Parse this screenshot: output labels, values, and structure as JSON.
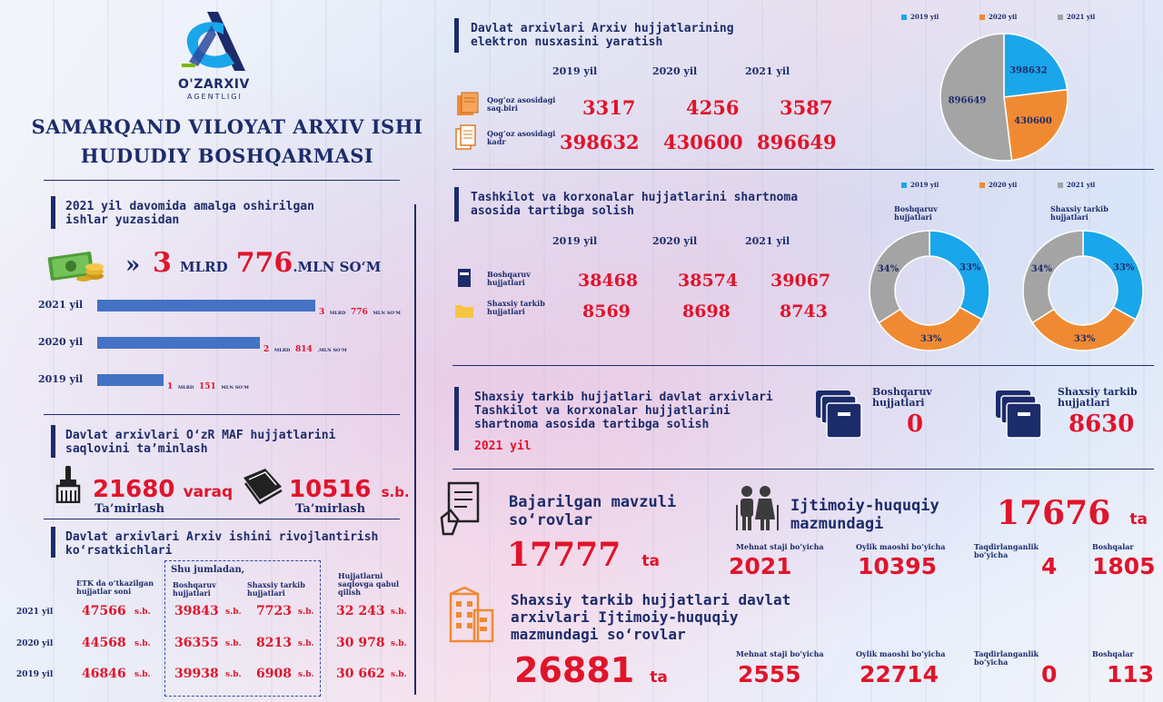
{
  "colors": {
    "navy": "#1c2c6b",
    "red": "#e0142b",
    "blue": "#1aa6ea",
    "orange": "#f08a32",
    "gray": "#a4a4a4",
    "bar": "#4472c4"
  },
  "logo": {
    "brand": "O'ZARXIV",
    "sub": "AGENTLIGI"
  },
  "title": {
    "line1": "SAMARQAND VILOYAT ARXIV ISHI",
    "line2": "HUDUDIY BOSHQARMASI"
  },
  "works": {
    "header_l1": "2021 yil davomida amalga oshirilgan",
    "header_l2": "ishlar yuzasidan",
    "money_icon": "money-icon",
    "arrow": "»",
    "total_a": "3",
    "total_a_unit": "MLRD",
    "total_b": "776",
    "total_b_unit": ".MLN SO‘M",
    "bars": [
      {
        "year": "2021 yil",
        "value": 3.776,
        "a": "3",
        "au": "MLRD",
        "b": "776",
        "bu": "MLN SO‘M"
      },
      {
        "year": "2020 yil",
        "value": 2.814,
        "a": "2",
        "au": "MLRD",
        "b": "814",
        "bu": ".MLN SO‘M"
      },
      {
        "year": "2019 yil",
        "value": 1.151,
        "a": "1",
        "au": "MLRD",
        "b": "151",
        "bu": "MLN SO‘M"
      }
    ]
  },
  "maf": {
    "header_l1": "Davlat arxivlari  O‘zR MAF hujjatlarini",
    "header_l2": "saqlovini ta’minlash",
    "left_num": "21680",
    "left_unit": "varaq",
    "left_caption": "Ta’mirlash",
    "right_num": "10516",
    "right_unit": "s.b.",
    "right_caption": "Ta’mirlash"
  },
  "dev": {
    "header_l1": "Davlat arxivlari Arxiv ishini rivojlantirish",
    "header_l2": "ko‘rsatkichlari",
    "col_etk_l1": "ETK da o‘tkazilgan",
    "col_etk_l2": "hujjatlar soni",
    "shu": "Shu jumladan,",
    "col_b_l1": "Boshqaruv",
    "col_b_l2": "hujjatlari",
    "col_s_l1": "Shaxsiy tarkib",
    "col_s_l2": "hujjatlari",
    "col_q_l1": "Hujjatlarni",
    "col_q_l2": "saqlovga qabul",
    "col_q_l3": "qilish",
    "unit": "s.b.",
    "rows": [
      {
        "year": "2021 yil",
        "etk": "47566",
        "b": "39843",
        "s": "7723",
        "q": "32 243"
      },
      {
        "year": "2020 yil",
        "etk": "44568",
        "b": "36355",
        "s": "8213",
        "q": "30 978"
      },
      {
        "year": "2019 yil",
        "etk": "46846",
        "b": "39938",
        "s": "6908",
        "q": "30 662"
      }
    ]
  },
  "elec": {
    "header_l1": "Davlat arxivlari Arxiv hujjatlarining",
    "header_l2": "elektron nusxasini yaratish",
    "years": [
      "2019 yil",
      "2020 yil",
      "2021 yil"
    ],
    "row1_l1": "Qog‘oz asosidagi",
    "row1_l2": "saq.biri",
    "row1": [
      "3317",
      "4256",
      "3587"
    ],
    "row2_l1": "Qog‘oz asosidagi",
    "row2_l2": "kadr",
    "row2": [
      "398632",
      "430600",
      "896649"
    ],
    "legend": [
      "2019 yil",
      "2020 yil",
      "2021 yil"
    ]
  },
  "pie1": {
    "labels": [
      "398632",
      "430600",
      "896649"
    ],
    "values": [
      398632,
      430600,
      896649
    ]
  },
  "org": {
    "header_l1": "Tashkilot va korxonalar hujjatlarini shartnoma",
    "header_l2": "asosida tartibga solish",
    "years": [
      "2019  yil",
      "2020  yil",
      "2021  yil"
    ],
    "row1_l1": "Boshqaruv",
    "row1_l2": "hujjatlari",
    "row1": [
      "38468",
      "38574",
      "39067"
    ],
    "row2_l1": "Shaxsiy tarkib",
    "row2_l2": "hujjatlari",
    "row2": [
      "8569",
      "8698",
      "8743"
    ],
    "legend": [
      "2019 yil",
      "2020 yil",
      "2021 yil"
    ],
    "donut1_l1": "Boshqaruv",
    "donut1_l2": "hujjatlari",
    "donut2_l1": "Shaxsiy tarkib",
    "donut2_l2": "hujjatlari",
    "donut_pcts": [
      "33%",
      "33%",
      "34%"
    ],
    "donut_values": [
      33,
      33,
      34
    ]
  },
  "contract": {
    "l1": "Shaxsiy tarkib hujjatlari davlat arxivlari",
    "l2": "Tashkilot va korxonalar hujjatlarini",
    "l3": "shartnoma asosida tartibga solish",
    "year": "2021 yil",
    "b_l1": "Boshqaruv",
    "b_l2": "hujjatlari",
    "b_val": "0",
    "s_l1": "Shaxsiy tarkib",
    "s_l2": "hujjatlari",
    "s_val": "8630"
  },
  "requests": {
    "l1": "Bajarilgan mavzuli",
    "l2": "so‘rovlar",
    "total": "17777",
    "unit": "ta",
    "social_l1": "Ijtimoiy-huquqiy",
    "social_l2": "mazmundagi",
    "social_total": "17676",
    "social_unit": "ta",
    "cats": [
      "Mehnat staji bo‘yicha",
      "Oylik maoshi bo‘yicha",
      "Taqdirlanganlik",
      "Boshqalar"
    ],
    "cat3_l2": "bo‘yicha",
    "row1": [
      "2021",
      "10395",
      "4",
      "1805"
    ],
    "pers_l1": "Shaxsiy tarkib hujjatlari davlat",
    "pers_l2": "arxivlari Ijtimoiy-huquqiy",
    "pers_l3": "mazmundagi so‘rovlar",
    "pers_total": "26881",
    "pers_unit": "ta",
    "row2": [
      "2555",
      "22714",
      "0",
      "113"
    ]
  }
}
